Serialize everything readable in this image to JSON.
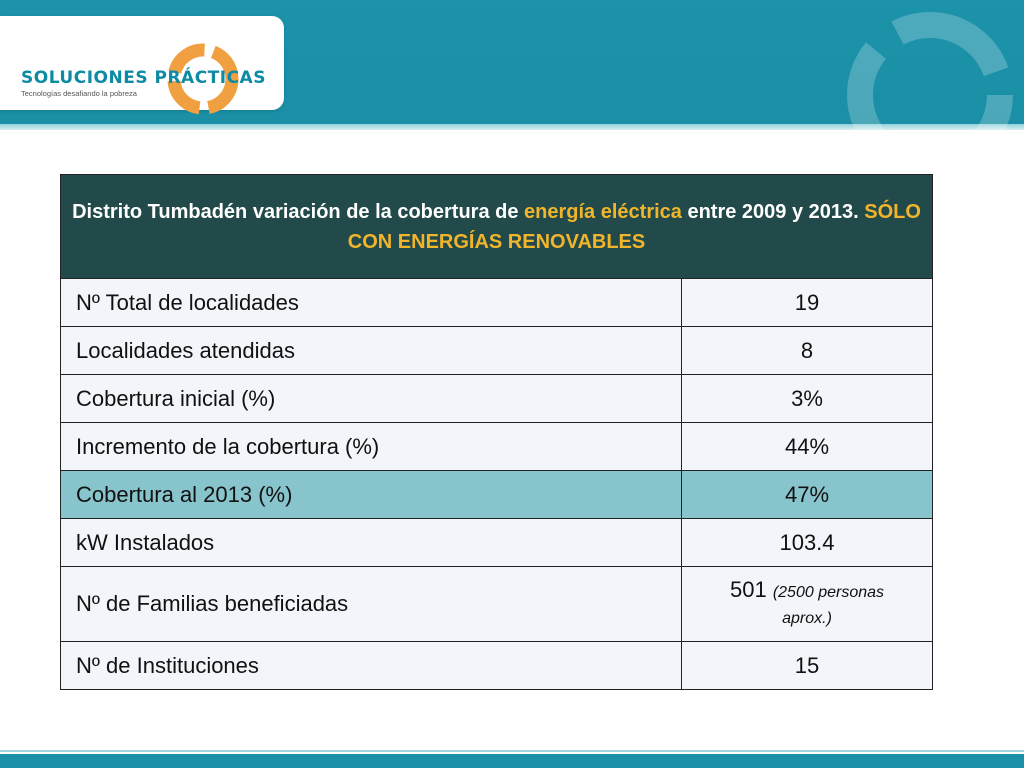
{
  "brand": {
    "name": "SOLUCIONES PRÁCTICAS",
    "tagline": "Tecnologías desafiando la pobreza",
    "accent": "#f0a040",
    "teal": "#1a8fa6"
  },
  "table": {
    "title_part1": "Distrito Tumbadén variación de la cobertura de ",
    "title_highlight1": "energía eléctrica",
    "title_part2": " entre 2009 y 2013. ",
    "title_highlight2": "SÓLO CON ENERGÍAS RENOVABLES",
    "rows": [
      {
        "label": "Nº Total de localidades",
        "value": "19"
      },
      {
        "label": "Localidades atendidas",
        "value": "8"
      },
      {
        "label": "Cobertura inicial (%)",
        "value": "3%"
      },
      {
        "label": "Incremento de la cobertura (%)",
        "value": "44%"
      },
      {
        "label": "Cobertura al 2013 (%)",
        "value": "47%"
      },
      {
        "label": "kW Instalados",
        "value": "103.4"
      },
      {
        "label": "Nº de Familias beneficiadas",
        "value": "501",
        "note_a": "(2500 personas",
        "note_b": "aprox.)"
      },
      {
        "label": "Nº de Instituciones",
        "value": "15"
      }
    ]
  }
}
